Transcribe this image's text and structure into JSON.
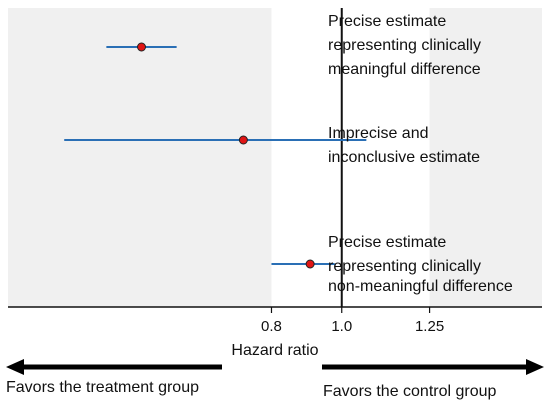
{
  "chart_data": {
    "type": "scatter",
    "title": "",
    "xlabel": "Hazard ratio",
    "ylabel": "",
    "xlim": [
      0.05,
      1.57
    ],
    "x_ticks": [
      0.8,
      1.0,
      1.25
    ],
    "x_tick_labels": [
      "0.8",
      "1.0",
      "1.25"
    ],
    "reference_line": 1.0,
    "shaded_regions": [
      {
        "from": 0.05,
        "to": 0.8,
        "color": "#f0f0f0"
      },
      {
        "from": 1.25,
        "to": 1.57,
        "color": "#f0f0f0"
      }
    ],
    "estimates": [
      {
        "estimate": 0.43,
        "ci_low": 0.33,
        "ci_high": 0.53,
        "annotation": [
          "Precise estimate",
          "representing clinically",
          "meaningful difference"
        ]
      },
      {
        "estimate": 0.72,
        "ci_low": 0.21,
        "ci_high": 1.07,
        "annotation": [
          "Imprecise and",
          "inconclusive estimate"
        ]
      },
      {
        "estimate": 0.91,
        "ci_low": 0.8,
        "ci_high": 0.98,
        "annotation": [
          "Precise estimate",
          "representing clinically",
          "non-meaningful  difference"
        ]
      }
    ],
    "left_arrow_label": "Favors the treatment group",
    "right_arrow_label": "Favors the control group",
    "colors": {
      "ci_line": "#2a6fb5",
      "point": "#e01515",
      "point_outline": "#222222",
      "shade": "#f0f0f0"
    },
    "grid": false,
    "legend": "none"
  }
}
